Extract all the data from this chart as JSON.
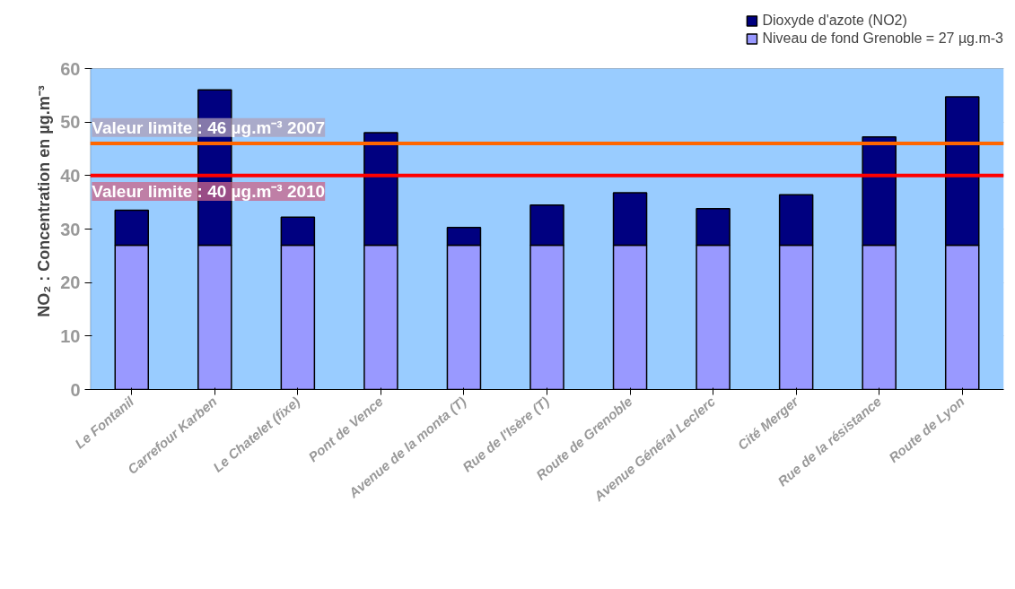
{
  "chart_data": {
    "type": "bar",
    "stacked": true,
    "ylabel": "NO₂ : Concentration en µg.m⁻³",
    "categories": [
      "Le Fontanil",
      "Carrefour Karben",
      "Le Chatelet (fixe)",
      "Pont de Vence",
      "Avenue de la monta (T)",
      "Rue de l'Isère (T)",
      "Route de Grenoble",
      "Avenue Général Leclerc",
      "Cité Merger",
      "Rue de la résistance",
      "Route de Lyon"
    ],
    "series": [
      {
        "name": "Niveau de fond Grenoble = 27 µg.m-3",
        "color": "#9999ff",
        "values": [
          27,
          27,
          27,
          27,
          27,
          27,
          27,
          27,
          27,
          27,
          27
        ]
      },
      {
        "name": "Dioxyde d'azote (NO2)",
        "color": "#000080",
        "values": [
          6.5,
          29,
          5.2,
          21,
          3.3,
          7.5,
          9.8,
          6.8,
          9.4,
          20.2,
          27.7
        ]
      }
    ],
    "ylim": [
      0,
      60
    ],
    "yticks": [
      0,
      10,
      20,
      30,
      40,
      50,
      60
    ],
    "grid": "y",
    "legend": "top right",
    "ref_lines": [
      {
        "axis": "y",
        "value": 46,
        "label": "Valeur limite : 46 µg.m⁻³ 2007",
        "color": "#ff6600"
      },
      {
        "axis": "y",
        "value": 40,
        "label": "Valeur limite : 40 µg.m⁻³ 2010",
        "color": "#ff0000"
      }
    ]
  }
}
